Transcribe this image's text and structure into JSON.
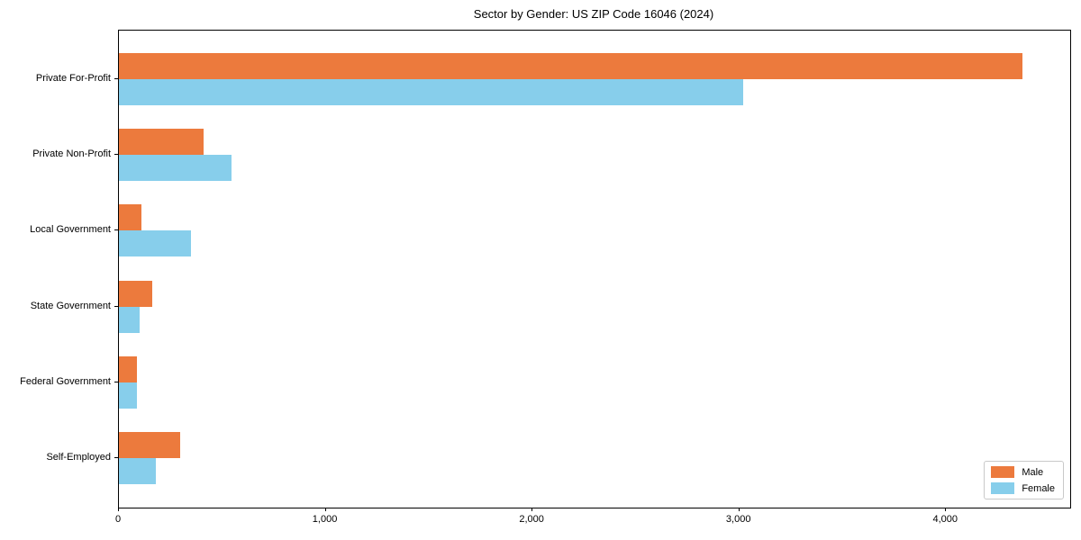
{
  "chart_data": {
    "type": "bar",
    "orientation": "horizontal",
    "title": "Sector by Gender: US ZIP Code 16046 (2024)",
    "categories": [
      "Private For-Profit",
      "Private Non-Profit",
      "Local Government",
      "State Government",
      "Federal Government",
      "Self-Employed"
    ],
    "series": [
      {
        "name": "Male",
        "color": "#ec7a3d",
        "values": [
          4370,
          410,
          110,
          160,
          85,
          295
        ]
      },
      {
        "name": "Female",
        "color": "#87ceeb",
        "values": [
          3020,
          545,
          350,
          100,
          88,
          180
        ]
      }
    ],
    "xlim": [
      0,
      4600
    ],
    "xticks": [
      0,
      1000,
      2000,
      3000,
      4000
    ],
    "xtick_labels": [
      "0",
      "1,000",
      "2,000",
      "3,000",
      "4,000"
    ],
    "grid": false,
    "legend_position": "lower right"
  }
}
